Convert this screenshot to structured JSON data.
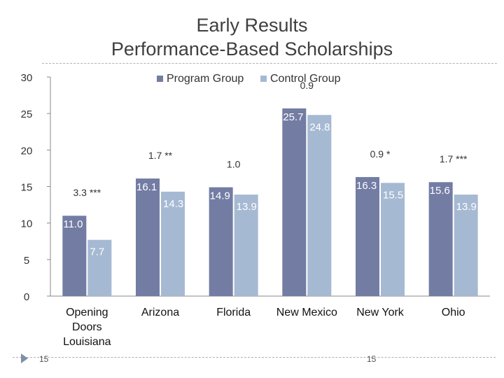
{
  "slide": {
    "title_line1": "Early Results",
    "title_line2": "Performance-Based Scholarships",
    "footer_number_left": "15",
    "footer_number_right": "15"
  },
  "colors": {
    "program": "#737ca3",
    "control": "#a6b9d3",
    "text": "#333333",
    "axis": "#888888"
  },
  "chart_data": {
    "type": "bar",
    "title": "",
    "xlabel": "",
    "ylabel": "",
    "ylim": [
      0,
      30
    ],
    "yticks": [
      0,
      5,
      10,
      15,
      20,
      25,
      30
    ],
    "legend": [
      "Program Group",
      "Control Group"
    ],
    "legend_position": "top-center",
    "categories": [
      [
        "Opening",
        "Doors",
        "Louisiana"
      ],
      [
        "Arizona"
      ],
      [
        "Florida"
      ],
      [
        "New Mexico"
      ],
      [
        "New York"
      ],
      [
        "Ohio"
      ]
    ],
    "series": [
      {
        "name": "Program Group",
        "values": [
          11.0,
          16.1,
          14.9,
          25.7,
          16.3,
          15.6
        ],
        "labels": [
          "11.0",
          "16.1",
          "14.9",
          "25.7",
          "16.3",
          "15.6"
        ]
      },
      {
        "name": "Control Group",
        "values": [
          7.7,
          14.3,
          13.9,
          24.8,
          15.5,
          13.9
        ],
        "labels": [
          "7.7",
          "14.3",
          "13.9",
          "24.8",
          "15.5",
          "13.9"
        ]
      }
    ],
    "differences": [
      "3.3 ***",
      "1.7 **",
      "1.0",
      "0.9",
      "0.9 *",
      "1.7 ***"
    ]
  }
}
